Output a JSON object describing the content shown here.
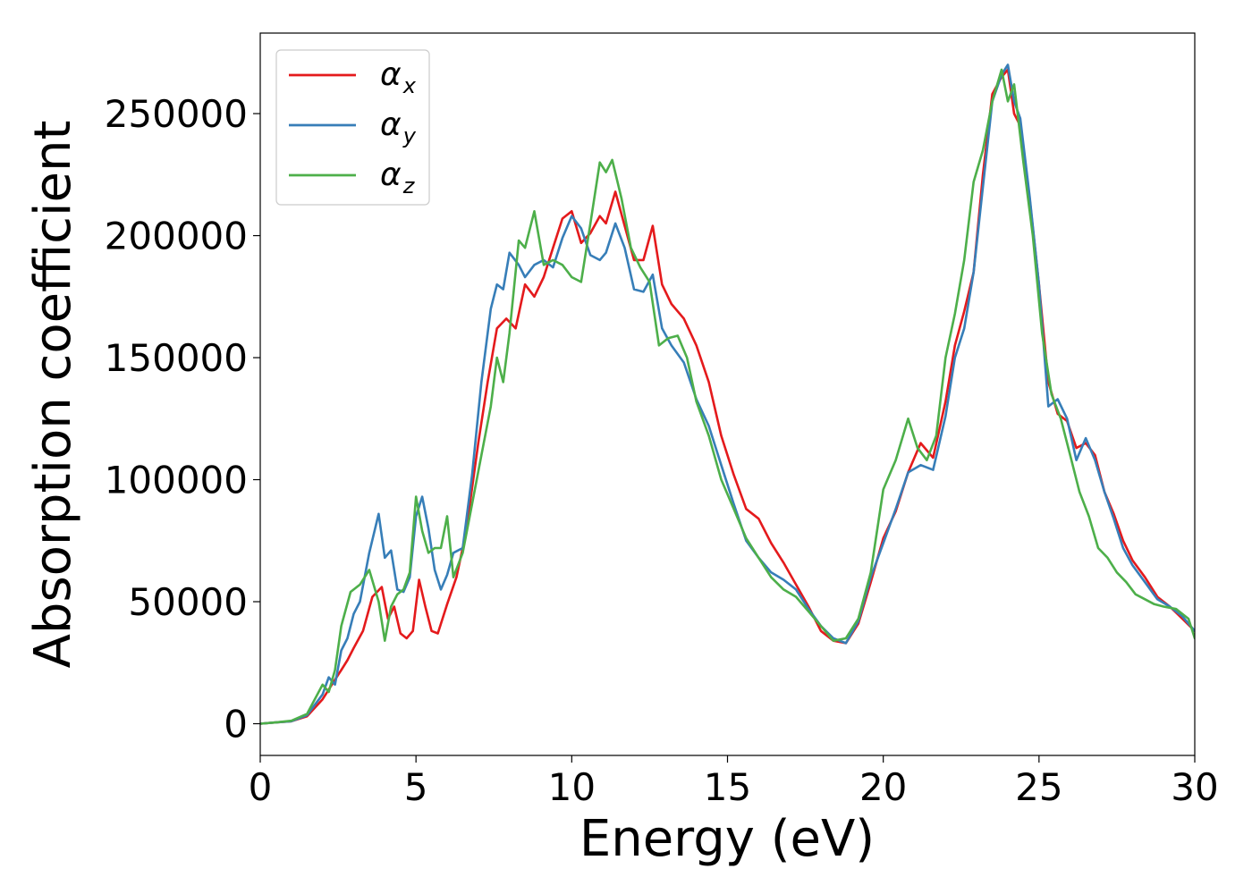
{
  "chart_data": {
    "type": "line",
    "xlabel": "Energy (eV)",
    "ylabel": "Absorption coefficient",
    "xlim": [
      0,
      30
    ],
    "ylim": [
      -13000,
      283000
    ],
    "x_ticks": [
      0,
      5,
      10,
      15,
      20,
      25,
      30
    ],
    "y_ticks": [
      0,
      50000,
      100000,
      150000,
      200000,
      250000
    ],
    "grid": false,
    "legend_position": "top-left",
    "series": [
      {
        "name": "αx",
        "base": "α",
        "sub": "x",
        "color": "#e41a1c",
        "x": [
          0,
          0.5,
          1,
          1.5,
          2,
          2.3,
          2.6,
          2.8,
          3,
          3.3,
          3.6,
          3.9,
          4.1,
          4.3,
          4.5,
          4.7,
          4.9,
          5.1,
          5.3,
          5.5,
          5.7,
          6,
          6.3,
          6.6,
          7,
          7.3,
          7.6,
          7.9,
          8.2,
          8.5,
          8.8,
          9.1,
          9.4,
          9.7,
          10,
          10.3,
          10.6,
          10.9,
          11.1,
          11.4,
          11.7,
          12,
          12.3,
          12.6,
          12.9,
          13.2,
          13.6,
          14,
          14.4,
          14.8,
          15.2,
          15.6,
          16,
          16.4,
          16.8,
          17.2,
          17.6,
          18,
          18.4,
          18.8,
          19.2,
          19.6,
          20,
          20.4,
          20.8,
          21.2,
          21.6,
          22,
          22.3,
          22.6,
          22.9,
          23.2,
          23.5,
          23.8,
          24,
          24.2,
          24.4,
          24.7,
          25,
          25.3,
          25.6,
          25.9,
          26.2,
          26.5,
          26.8,
          27.1,
          27.4,
          27.7,
          28,
          28.4,
          28.8,
          29.2,
          29.6,
          30
        ],
        "y": [
          0,
          500,
          1000,
          3000,
          10000,
          16000,
          22000,
          26000,
          31000,
          38000,
          52000,
          56000,
          43000,
          48000,
          37000,
          35000,
          38000,
          59000,
          48000,
          38000,
          37000,
          49000,
          60000,
          78000,
          115000,
          140000,
          162000,
          166000,
          162000,
          180000,
          175000,
          183000,
          195000,
          207000,
          210000,
          197000,
          201000,
          208000,
          205000,
          218000,
          204000,
          190000,
          190000,
          204000,
          180000,
          172000,
          166000,
          155000,
          140000,
          118000,
          102000,
          88000,
          84000,
          74000,
          66000,
          57000,
          48000,
          38000,
          34000,
          33000,
          41000,
          58000,
          76000,
          87000,
          103000,
          115000,
          109000,
          132000,
          155000,
          169000,
          185000,
          225000,
          258000,
          265000,
          268000,
          250000,
          245000,
          215000,
          180000,
          140000,
          127000,
          124000,
          113000,
          115000,
          110000,
          95000,
          86000,
          75000,
          67000,
          60000,
          52000,
          48000,
          43000,
          38000
        ]
      },
      {
        "name": "αy",
        "base": "α",
        "sub": "y",
        "color": "#377eb8",
        "x": [
          0,
          0.5,
          1,
          1.5,
          2,
          2.2,
          2.4,
          2.6,
          2.8,
          3,
          3.2,
          3.5,
          3.8,
          4,
          4.2,
          4.4,
          4.6,
          4.8,
          5,
          5.2,
          5.4,
          5.6,
          5.8,
          6,
          6.2,
          6.5,
          6.8,
          7.1,
          7.4,
          7.6,
          7.8,
          8,
          8.3,
          8.5,
          8.8,
          9.1,
          9.4,
          9.7,
          10,
          10.3,
          10.6,
          10.9,
          11.1,
          11.4,
          11.7,
          12,
          12.3,
          12.6,
          12.9,
          13.2,
          13.6,
          14,
          14.4,
          14.8,
          15.2,
          15.6,
          16,
          16.4,
          16.8,
          17.2,
          17.6,
          18,
          18.4,
          18.8,
          19.2,
          19.6,
          20,
          20.4,
          20.8,
          21.2,
          21.6,
          22,
          22.3,
          22.6,
          22.9,
          23.2,
          23.5,
          23.8,
          24,
          24.2,
          24.4,
          24.7,
          25,
          25.3,
          25.6,
          25.9,
          26.2,
          26.5,
          26.8,
          27.1,
          27.4,
          27.7,
          28,
          28.4,
          28.8,
          29.2,
          29.6,
          30
        ],
        "y": [
          0,
          500,
          1000,
          3500,
          12000,
          19000,
          16000,
          30000,
          35000,
          45000,
          50000,
          70000,
          86000,
          68000,
          71000,
          55000,
          54000,
          60000,
          85000,
          93000,
          80000,
          63000,
          55000,
          61000,
          70000,
          72000,
          102000,
          140000,
          170000,
          180000,
          178000,
          193000,
          188000,
          183000,
          188000,
          190000,
          187000,
          199000,
          208000,
          203000,
          192000,
          190000,
          193000,
          205000,
          195000,
          178000,
          177000,
          184000,
          162000,
          155000,
          148000,
          133000,
          122000,
          106000,
          90000,
          75000,
          68000,
          62000,
          59000,
          55000,
          47000,
          40000,
          35000,
          33000,
          42000,
          60000,
          74000,
          88000,
          103000,
          106000,
          104000,
          126000,
          150000,
          162000,
          185000,
          220000,
          255000,
          266000,
          270000,
          255000,
          248000,
          216000,
          180000,
          130000,
          133000,
          125000,
          108000,
          117000,
          108000,
          95000,
          84000,
          72000,
          65000,
          58000,
          51000,
          48000,
          44000,
          38000
        ]
      },
      {
        "name": "αz",
        "base": "α",
        "sub": "z",
        "color": "#4daf4a",
        "x": [
          0,
          0.5,
          1,
          1.5,
          2,
          2.2,
          2.4,
          2.6,
          2.9,
          3.2,
          3.5,
          3.8,
          4,
          4.2,
          4.4,
          4.6,
          4.8,
          5,
          5.2,
          5.4,
          5.6,
          5.8,
          6,
          6.2,
          6.5,
          6.8,
          7.1,
          7.4,
          7.6,
          7.8,
          8,
          8.3,
          8.5,
          8.8,
          9.1,
          9.4,
          9.7,
          10,
          10.3,
          10.6,
          10.9,
          11.1,
          11.3,
          11.6,
          11.9,
          12.2,
          12.5,
          12.8,
          13.1,
          13.4,
          13.7,
          14,
          14.4,
          14.8,
          15.2,
          15.6,
          16,
          16.4,
          16.8,
          17.2,
          17.6,
          18,
          18.4,
          18.8,
          19.2,
          19.6,
          20,
          20.4,
          20.8,
          21.1,
          21.4,
          21.7,
          22,
          22.3,
          22.6,
          22.9,
          23.2,
          23.5,
          23.8,
          24,
          24.2,
          24.5,
          24.8,
          25.1,
          25.4,
          25.7,
          26,
          26.3,
          26.6,
          26.9,
          27.2,
          27.5,
          27.8,
          28.1,
          28.4,
          28.7,
          29,
          29.4,
          29.8,
          30
        ],
        "y": [
          0,
          500,
          1200,
          4000,
          16000,
          13000,
          22000,
          40000,
          54000,
          57000,
          63000,
          50000,
          34000,
          48000,
          53000,
          55000,
          62000,
          93000,
          79000,
          70000,
          72000,
          72000,
          85000,
          60000,
          70000,
          90000,
          110000,
          130000,
          150000,
          140000,
          160000,
          198000,
          195000,
          210000,
          188000,
          190000,
          188000,
          183000,
          181000,
          205000,
          230000,
          226000,
          231000,
          215000,
          195000,
          187000,
          181000,
          155000,
          158000,
          159000,
          150000,
          132000,
          118000,
          100000,
          88000,
          76000,
          68000,
          60000,
          55000,
          52000,
          46000,
          40000,
          34000,
          35000,
          43000,
          62000,
          96000,
          108000,
          125000,
          113000,
          108000,
          118000,
          150000,
          168000,
          190000,
          222000,
          235000,
          255000,
          268000,
          255000,
          262000,
          230000,
          200000,
          160000,
          135000,
          125000,
          110000,
          95000,
          85000,
          72000,
          68000,
          62000,
          58000,
          53000,
          51000,
          49000,
          48000,
          47000,
          43000,
          35000
        ]
      }
    ]
  }
}
